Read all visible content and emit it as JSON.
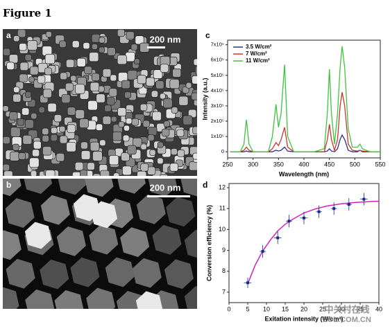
{
  "figure_title": "Figure 1",
  "panel_labels": [
    "a",
    "b",
    "c",
    "d"
  ],
  "scale_bars": [
    "200 nm",
    "200 nm"
  ],
  "watermark": [
    "中关村在线",
    "ZOL.COM.CN"
  ],
  "chart_data": [
    {
      "type": "line",
      "xlabel": "Wavelength (nm)",
      "ylabel": "Intensity (a.u.)",
      "xlim": [
        250,
        550
      ],
      "xticks": [
        250,
        300,
        350,
        400,
        450,
        500,
        550
      ],
      "ylim": [
        -40000,
        730000
      ],
      "yticks": [
        0,
        {
          "value": 100000,
          "label": "1x10⁵"
        },
        {
          "value": 200000,
          "label": "2x10⁵"
        },
        {
          "value": 300000,
          "label": "3x10⁵"
        },
        {
          "value": 400000,
          "label": "4x10⁵"
        },
        {
          "value": 500000,
          "label": "5x10⁵"
        },
        {
          "value": 600000,
          "label": "6x10⁵"
        },
        {
          "value": 700000,
          "label": "7x10⁵"
        }
      ],
      "legend": "upper left",
      "x": [
        255,
        275,
        282,
        287,
        292,
        300,
        330,
        338,
        345,
        350,
        355,
        362,
        368,
        380,
        420,
        440,
        446,
        450,
        454,
        460,
        466,
        471,
        475,
        480,
        487,
        495,
        505,
        510,
        515,
        530,
        550
      ],
      "series": [
        {
          "name": "3.5  W/cm²",
          "color": "#2e2e8a",
          "values": [
            0,
            0,
            0,
            5000,
            0,
            0,
            0,
            0,
            10000,
            5000,
            10000,
            30000,
            5000,
            0,
            0,
            0,
            5000,
            20000,
            5000,
            0,
            20000,
            80000,
            110000,
            80000,
            10000,
            0,
            0,
            10000,
            0,
            0,
            0
          ]
        },
        {
          "name": "7  W/cm²",
          "color": "#c8352b",
          "values": [
            0,
            0,
            10000,
            30000,
            10000,
            0,
            0,
            20000,
            60000,
            40000,
            80000,
            160000,
            30000,
            0,
            0,
            0,
            80000,
            180000,
            80000,
            10000,
            80000,
            300000,
            390000,
            300000,
            50000,
            10000,
            5000,
            10000,
            5000,
            0,
            0
          ]
        },
        {
          "name": "11  W/cm²",
          "color": "#3cc43c",
          "values": [
            0,
            0,
            50000,
            210000,
            50000,
            0,
            0,
            100000,
            310000,
            160000,
            250000,
            570000,
            100000,
            0,
            0,
            20000,
            250000,
            540000,
            250000,
            50000,
            250000,
            550000,
            690000,
            550000,
            150000,
            30000,
            30000,
            50000,
            20000,
            0,
            0
          ]
        }
      ]
    },
    {
      "type": "scatter",
      "xlabel": "Exitation intensity (W/cm²)",
      "ylabel": "Conversion efficiency (%)",
      "xlim": [
        0,
        40
      ],
      "xticks": [
        0,
        5,
        10,
        15,
        20,
        25,
        30,
        35,
        40
      ],
      "ylim": [
        6.5,
        12.2
      ],
      "yticks": [
        7,
        8,
        9,
        10,
        11,
        12
      ],
      "series": [
        {
          "color": "#1a2a8a",
          "x": [
            5,
            9,
            13,
            16,
            20,
            24,
            28,
            32,
            36
          ],
          "values": [
            7.45,
            8.95,
            9.6,
            10.4,
            10.55,
            10.85,
            11.0,
            11.2,
            11.45
          ],
          "errors": [
            0.25,
            0.3,
            0.3,
            0.3,
            0.3,
            0.3,
            0.3,
            0.3,
            0.3
          ],
          "xerrors": [
            1,
            0.8,
            1,
            0.8,
            1,
            0.8,
            0.8,
            0.8,
            1
          ]
        }
      ],
      "fit": {
        "color": "#d020c0",
        "x": [
          5,
          7,
          9,
          11,
          13,
          15,
          17,
          20,
          23,
          26,
          30,
          34,
          38,
          40
        ],
        "values": [
          7.4,
          8.3,
          8.97,
          9.49,
          9.93,
          10.25,
          10.49,
          10.79,
          10.98,
          11.12,
          11.23,
          11.3,
          11.34,
          11.35
        ]
      }
    }
  ]
}
